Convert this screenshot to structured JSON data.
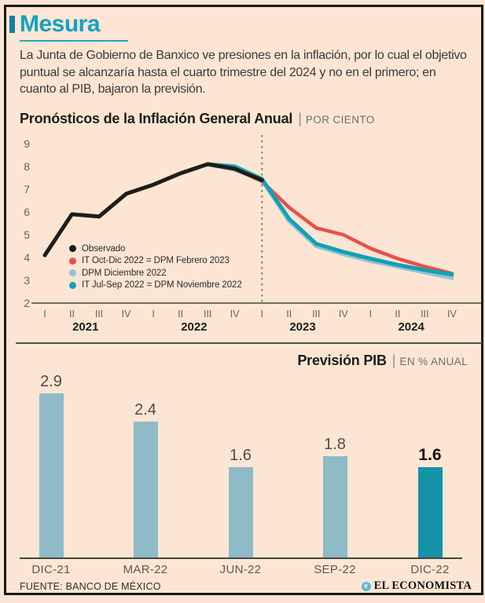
{
  "header": {
    "title": "Mesura",
    "intro": "La Junta de Gobierno de Banxico ve presiones en la inflación, por lo cual el objetivo puntual se alcanzaría hasta el cuarto trimestre del 2024 y no en el primero; en cuanto al PIB, bajaron la previsión."
  },
  "colors": {
    "background": "#fce6d3",
    "frame": "#191919",
    "title_accent": "#13a3c2",
    "title_marker": "#16809d",
    "observed": "#1d1d1b",
    "forecast_feb2023": "#e8504b",
    "forecast_dic2022": "#95c2d2",
    "forecast_nov2022": "#12a0b4",
    "bar_light": "#8fbac8",
    "bar_highlight": "#1591a8",
    "axis": "#4a443e",
    "dashed_line": "#8a7a6d"
  },
  "chart_data": [
    {
      "type": "line",
      "title": "Pronósticos de la Inflación General Anual",
      "unit": "POR CIENTO",
      "quarters": [
        "I",
        "II",
        "III",
        "IV",
        "I",
        "II",
        "III",
        "IV",
        "I",
        "II",
        "III",
        "IV",
        "I",
        "II",
        "III",
        "IV"
      ],
      "years": [
        "2021",
        "2022",
        "2023",
        "2024"
      ],
      "ylim": [
        2,
        9
      ],
      "yticks": [
        9,
        8,
        7,
        6,
        5,
        4,
        3,
        2
      ],
      "grid": "none",
      "forecast_divider_index": 8,
      "legend_position": "inside-lower-left",
      "draw_order": [
        2,
        1,
        3,
        0
      ],
      "series": [
        {
          "name": "Observado",
          "color": "#1d1d1b",
          "width": 5,
          "start": 0,
          "values": [
            4.1,
            5.9,
            5.8,
            6.8,
            7.2,
            7.7,
            8.1,
            7.9,
            7.4
          ]
        },
        {
          "name": "IT Oct-Dic 2022 = DPM Febrero 2023",
          "color": "#e8504b",
          "width": 4.5,
          "start": 7,
          "values": [
            7.9,
            7.35,
            6.2,
            5.3,
            5.0,
            4.4,
            3.95,
            3.6,
            3.3
          ]
        },
        {
          "name": "DPM Diciembre 2022",
          "color": "#95c2d2",
          "width": 5,
          "start": 6,
          "values": [
            8.1,
            7.85,
            7.4,
            5.6,
            4.5,
            4.15,
            3.85,
            3.6,
            3.35,
            3.1
          ]
        },
        {
          "name": "IT Jul-Sep 2022 = DPM Noviembre 2022",
          "color": "#12a0b4",
          "width": 5,
          "start": 6,
          "values": [
            8.1,
            8.0,
            7.45,
            5.7,
            4.6,
            4.25,
            3.95,
            3.68,
            3.45,
            3.25
          ]
        }
      ]
    },
    {
      "type": "bar",
      "title": "Previsión PIB",
      "unit": "EN % ANUAL",
      "categories": [
        "DIC-21",
        "MAR-22",
        "JUN-22",
        "SEP-22",
        "DIC-22"
      ],
      "values": [
        2.9,
        2.4,
        1.6,
        1.8,
        1.6
      ],
      "value_labels": [
        "2.9",
        "2.4",
        "1.6",
        "1.8",
        "1.6"
      ],
      "highlight_index": 4,
      "ylim": [
        0,
        3.2
      ]
    }
  ],
  "footer": {
    "source": "FUENTE: BANCO DE MÉXICO",
    "brand": "EL ECONOMISTA",
    "brand_icon": "e"
  }
}
